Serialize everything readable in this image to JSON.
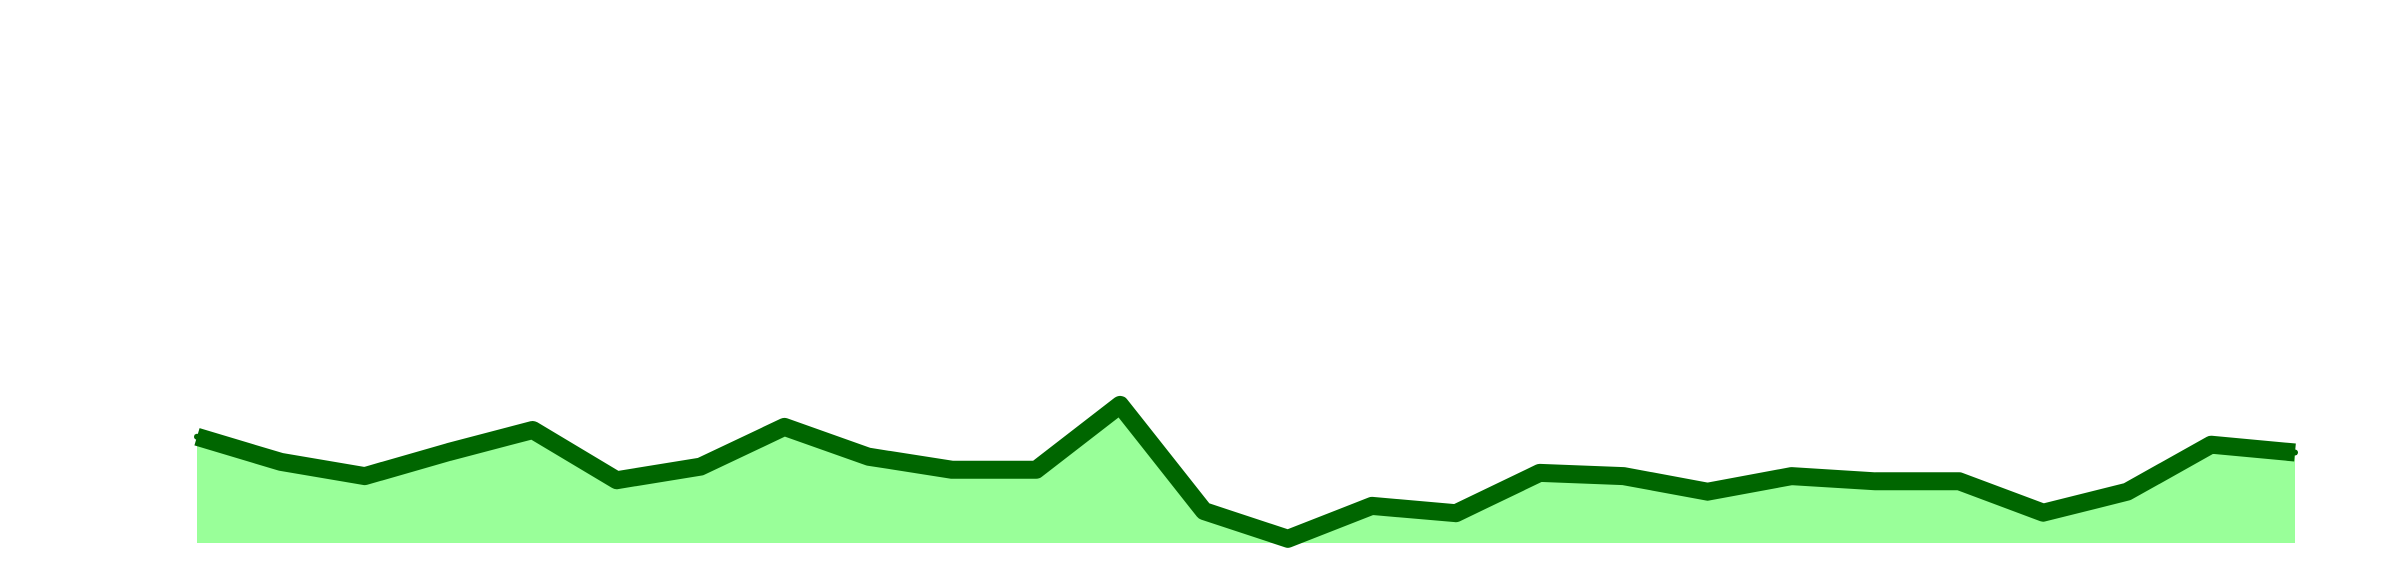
{
  "chart_data": {
    "type": "area",
    "x": [
      0,
      1,
      2,
      3,
      4,
      5,
      6,
      7,
      8,
      9,
      10,
      11,
      12,
      13,
      14,
      15,
      16,
      17,
      18,
      19,
      20,
      21,
      22,
      23,
      24,
      25
    ],
    "values": [
      20.3,
      15.5,
      12.8,
      17.4,
      21.6,
      12.0,
      14.6,
      22.2,
      16.5,
      14.0,
      14.0,
      26.4,
      6.1,
      0.8,
      7.1,
      5.7,
      13.4,
      12.8,
      9.8,
      12.8,
      11.8,
      11.8,
      5.8,
      9.8,
      18.8,
      17.3
    ],
    "ylim": [
      0,
      100
    ],
    "grid": false,
    "legend": "none",
    "colors": {
      "line": "#006600",
      "fill": "#99ff99",
      "background": "#ffffff"
    }
  }
}
